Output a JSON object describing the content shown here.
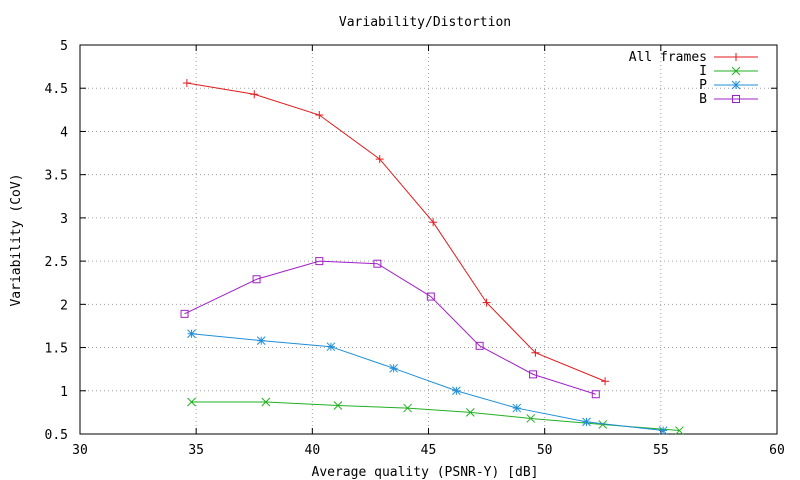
{
  "chart_data": {
    "type": "line",
    "title": "Variability/Distortion",
    "xlabel": "Average quality (PSNR-Y) [dB]",
    "ylabel": "Variability (CoV)",
    "xlim": [
      30,
      60
    ],
    "ylim": [
      0.5,
      5
    ],
    "x_ticks": [
      "30",
      "35",
      "40",
      "45",
      "50",
      "55",
      "60"
    ],
    "y_ticks": [
      "0.5",
      "1",
      "1.5",
      "2",
      "2.5",
      "3",
      "3.5",
      "4",
      "4.5",
      "5"
    ],
    "grid": true,
    "legend_position": "top-right",
    "series": [
      {
        "name": "All frames",
        "color": "#e31a1c",
        "marker": "plus",
        "points": [
          [
            34.6,
            4.56
          ],
          [
            37.5,
            4.43
          ],
          [
            40.3,
            4.19
          ],
          [
            42.9,
            3.68
          ],
          [
            45.2,
            2.95
          ],
          [
            47.5,
            2.02
          ],
          [
            49.6,
            1.44
          ],
          [
            52.6,
            1.11
          ]
        ]
      },
      {
        "name": "I",
        "color": "#22b022",
        "marker": "x",
        "points": [
          [
            34.8,
            0.87
          ],
          [
            38.0,
            0.87
          ],
          [
            41.1,
            0.83
          ],
          [
            44.1,
            0.8
          ],
          [
            46.8,
            0.75
          ],
          [
            49.4,
            0.68
          ],
          [
            52.5,
            0.61
          ],
          [
            55.8,
            0.54
          ]
        ]
      },
      {
        "name": "P",
        "color": "#1f8fd8",
        "marker": "star",
        "points": [
          [
            34.8,
            1.66
          ],
          [
            37.8,
            1.58
          ],
          [
            40.8,
            1.51
          ],
          [
            43.5,
            1.26
          ],
          [
            46.2,
            1.0
          ],
          [
            48.8,
            0.8
          ],
          [
            51.8,
            0.64
          ],
          [
            55.1,
            0.54
          ]
        ]
      },
      {
        "name": "B",
        "color": "#a020c8",
        "marker": "square",
        "points": [
          [
            34.5,
            1.89
          ],
          [
            37.6,
            2.29
          ],
          [
            40.3,
            2.5
          ],
          [
            42.8,
            2.47
          ],
          [
            45.1,
            2.09
          ],
          [
            47.2,
            1.52
          ],
          [
            49.5,
            1.19
          ],
          [
            52.2,
            0.96
          ]
        ]
      }
    ]
  }
}
